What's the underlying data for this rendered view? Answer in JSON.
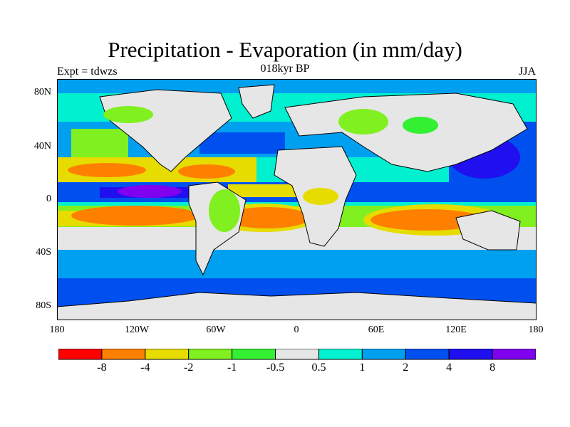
{
  "title": "Precipitation - Evaporation (in mm/day)",
  "subtitle": "018kyr BP",
  "left_note": "Expt = tdwzs",
  "right_note": "JJA",
  "lat_ticks": [
    "80N",
    "40N",
    "0",
    "40S",
    "80S"
  ],
  "lon_ticks": [
    "180",
    "120W",
    "60W",
    "0",
    "60E",
    "120E",
    "180"
  ],
  "colorbar": {
    "colors": [
      "#ff0000",
      "#ff8000",
      "#e6dc00",
      "#80f020",
      "#33f033",
      "#e6e6e6",
      "#00f0d0",
      "#00a0f0",
      "#0050f0",
      "#2010f0",
      "#8000f0"
    ],
    "labels": [
      "-8",
      "-4",
      "-2",
      "-1",
      "-0.5",
      "0.5",
      "1",
      "2",
      "4",
      "8"
    ]
  },
  "colors": {
    "ocean_default": "#00f0d0",
    "land": "#e6e6e6",
    "coast": "#000000"
  }
}
